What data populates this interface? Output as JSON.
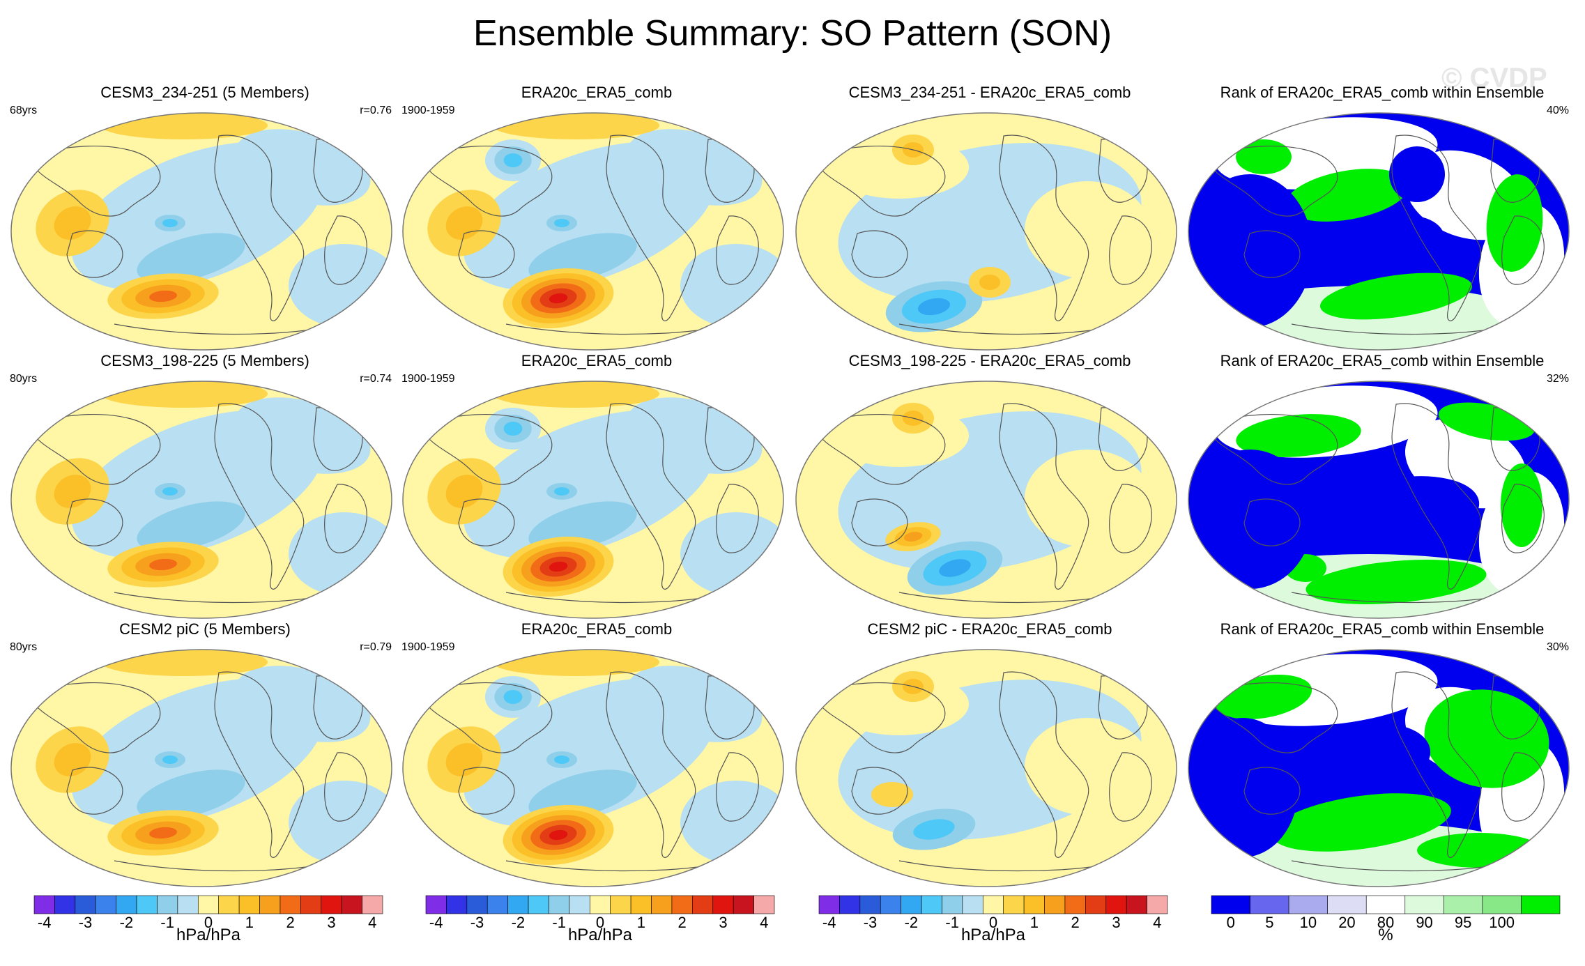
{
  "title": "Ensemble Summary: SO Pattern (SON)",
  "watermark": "© CVDP",
  "colors": {
    "diverging": [
      "#7f2de6",
      "#3232e6",
      "#2a5bd9",
      "#3c82ec",
      "#33a8f2",
      "#4ec8f6",
      "#8fcfea",
      "#b8dff2",
      "#fff6a6",
      "#fcd54a",
      "#fbbf27",
      "#f7a01d",
      "#f26b16",
      "#e23d15",
      "#e0150f",
      "#c8141e",
      "#f6a9a9"
    ],
    "rank": [
      "#0000ee",
      "#6666ee",
      "#aaaaee",
      "#ddddf6",
      "#ffffff",
      "#ddfadd",
      "#aaf0aa",
      "#88e888",
      "#00ee00"
    ],
    "ocean": "#b8dff2",
    "land_pos": "#fff6a6"
  },
  "chart_data": [
    {
      "type": "map",
      "row": 0,
      "col": 0,
      "title": "CESM3_234-251 (5 Members)",
      "left_label": "68yrs",
      "right_label": "r=0.76",
      "kind": "model"
    },
    {
      "type": "map",
      "row": 0,
      "col": 1,
      "title": "ERA20c_ERA5_comb",
      "left_label": "1900-1959",
      "right_label": "",
      "kind": "obs"
    },
    {
      "type": "map",
      "row": 0,
      "col": 2,
      "title": "CESM3_234-251 - ERA20c_ERA5_comb",
      "left_label": "",
      "right_label": "",
      "kind": "diff1"
    },
    {
      "type": "map",
      "row": 0,
      "col": 3,
      "title": "Rank of ERA20c_ERA5_comb within Ensemble",
      "left_label": "",
      "right_label": "40%",
      "kind": "rank1"
    },
    {
      "type": "map",
      "row": 1,
      "col": 0,
      "title": "CESM3_198-225 (5 Members)",
      "left_label": "80yrs",
      "right_label": "r=0.74",
      "kind": "model"
    },
    {
      "type": "map",
      "row": 1,
      "col": 1,
      "title": "ERA20c_ERA5_comb",
      "left_label": "1900-1959",
      "right_label": "",
      "kind": "obs"
    },
    {
      "type": "map",
      "row": 1,
      "col": 2,
      "title": "CESM3_198-225 - ERA20c_ERA5_comb",
      "left_label": "",
      "right_label": "",
      "kind": "diff2"
    },
    {
      "type": "map",
      "row": 1,
      "col": 3,
      "title": "Rank of ERA20c_ERA5_comb within Ensemble",
      "left_label": "",
      "right_label": "32%",
      "kind": "rank2"
    },
    {
      "type": "map",
      "row": 2,
      "col": 0,
      "title": "CESM2 piC (5 Members)",
      "left_label": "80yrs",
      "right_label": "r=0.79",
      "kind": "model"
    },
    {
      "type": "map",
      "row": 2,
      "col": 1,
      "title": "ERA20c_ERA5_comb",
      "left_label": "1900-1959",
      "right_label": "",
      "kind": "obs"
    },
    {
      "type": "map",
      "row": 2,
      "col": 2,
      "title": "CESM2 piC - ERA20c_ERA5_comb",
      "left_label": "",
      "right_label": "",
      "kind": "diff3"
    },
    {
      "type": "map",
      "row": 2,
      "col": 3,
      "title": "Rank of ERA20c_ERA5_comb within Ensemble",
      "left_label": "",
      "right_label": "30%",
      "kind": "rank3"
    }
  ],
  "colorbars": [
    {
      "kind": "diverging",
      "ticks": [
        "-4",
        "-3",
        "-2",
        "-1",
        "0",
        "1",
        "2",
        "3",
        "4"
      ],
      "unit": "hPa/hPa"
    },
    {
      "kind": "diverging",
      "ticks": [
        "-4",
        "-3",
        "-2",
        "-1",
        "0",
        "1",
        "2",
        "3",
        "4"
      ],
      "unit": "hPa/hPa"
    },
    {
      "kind": "diverging",
      "ticks": [
        "-4",
        "-3",
        "-2",
        "-1",
        "0",
        "1",
        "2",
        "3",
        "4"
      ],
      "unit": "hPa/hPa"
    },
    {
      "kind": "rank",
      "ticks": [
        "0",
        "5",
        "10",
        "20",
        "80",
        "90",
        "95",
        "100"
      ],
      "unit": "%"
    }
  ]
}
